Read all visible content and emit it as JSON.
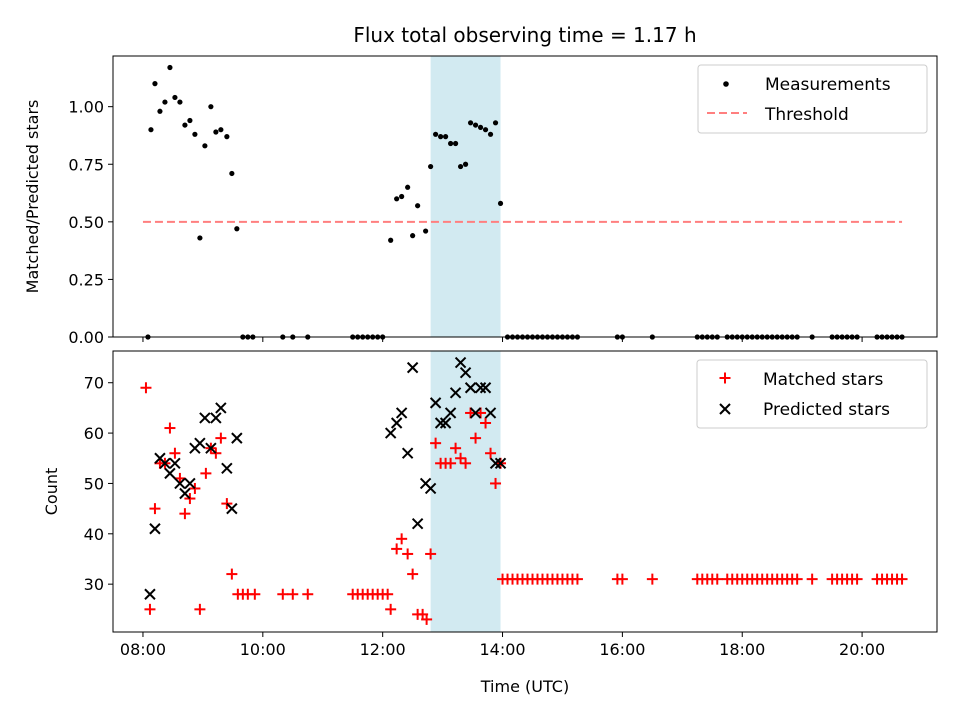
{
  "colors": {
    "measurement": "#000000",
    "threshold": "#ff7f7f",
    "matched": "#ff0000",
    "predicted": "#000000",
    "highlight": "#add8e6"
  },
  "chart_data": [
    {
      "type": "scatter",
      "title": "Flux total observing time = 1.17 h",
      "xlabel": "",
      "ylabel": "Matched/Predicted stars",
      "xlim": [
        "07:30",
        "21:15"
      ],
      "ylim": [
        0,
        1.22
      ],
      "yticks": [
        "0.00",
        "0.25",
        "0.50",
        "0.75",
        "1.00"
      ],
      "xticks": [
        "08:00",
        "10:00",
        "12:00",
        "14:00",
        "16:00",
        "18:00",
        "20:00"
      ],
      "highlight_span": [
        "12:48",
        "13:58"
      ],
      "legend": {
        "position": "top-right",
        "entries": [
          "Measurements",
          "Threshold"
        ]
      },
      "threshold": {
        "value": 0.5,
        "x": [
          "08:00",
          "20:40"
        ]
      },
      "series": [
        {
          "name": "Measurements",
          "points": [
            [
              "08:05",
              0
            ],
            [
              "08:08",
              0.9
            ],
            [
              "08:12",
              1.1
            ],
            [
              "08:17",
              0.98
            ],
            [
              "08:22",
              1.02
            ],
            [
              "08:27",
              1.17
            ],
            [
              "08:32",
              1.04
            ],
            [
              "08:37",
              1.02
            ],
            [
              "08:42",
              0.92
            ],
            [
              "08:47",
              0.94
            ],
            [
              "08:52",
              0.88
            ],
            [
              "08:57",
              0.43
            ],
            [
              "09:02",
              0.83
            ],
            [
              "09:08",
              1.0
            ],
            [
              "09:13",
              0.89
            ],
            [
              "09:18",
              0.9
            ],
            [
              "09:24",
              0.87
            ],
            [
              "09:29",
              0.71
            ],
            [
              "09:34",
              0.47
            ],
            [
              "09:40",
              0
            ],
            [
              "09:45",
              0
            ],
            [
              "09:50",
              0
            ],
            [
              "10:20",
              0
            ],
            [
              "10:30",
              0
            ],
            [
              "10:45",
              0
            ],
            [
              "11:30",
              0
            ],
            [
              "11:35",
              0
            ],
            [
              "11:40",
              0
            ],
            [
              "11:45",
              0
            ],
            [
              "11:50",
              0
            ],
            [
              "11:55",
              0
            ],
            [
              "12:00",
              0
            ],
            [
              "12:08",
              0.42
            ],
            [
              "12:14",
              0.6
            ],
            [
              "12:19",
              0.61
            ],
            [
              "12:25",
              0.65
            ],
            [
              "12:30",
              0.44
            ],
            [
              "12:35",
              0.57
            ],
            [
              "12:43",
              0.46
            ],
            [
              "12:48",
              0.74
            ],
            [
              "12:53",
              0.88
            ],
            [
              "12:58",
              0.87
            ],
            [
              "13:03",
              0.87
            ],
            [
              "13:08",
              0.84
            ],
            [
              "13:13",
              0.84
            ],
            [
              "13:18",
              0.74
            ],
            [
              "13:23",
              0.75
            ],
            [
              "13:28",
              0.93
            ],
            [
              "13:33",
              0.92
            ],
            [
              "13:38",
              0.91
            ],
            [
              "13:43",
              0.9
            ],
            [
              "13:48",
              0.88
            ],
            [
              "13:53",
              0.93
            ],
            [
              "13:58",
              0.58
            ],
            [
              "14:05",
              0
            ],
            [
              "14:10",
              0
            ],
            [
              "14:15",
              0
            ],
            [
              "14:20",
              0
            ],
            [
              "14:25",
              0
            ],
            [
              "14:30",
              0
            ],
            [
              "14:35",
              0
            ],
            [
              "14:40",
              0
            ],
            [
              "14:45",
              0
            ],
            [
              "14:50",
              0
            ],
            [
              "14:55",
              0
            ],
            [
              "15:00",
              0
            ],
            [
              "15:05",
              0
            ],
            [
              "15:10",
              0
            ],
            [
              "15:15",
              0
            ],
            [
              "15:55",
              0
            ],
            [
              "16:00",
              0
            ],
            [
              "16:30",
              0
            ],
            [
              "17:15",
              0
            ],
            [
              "17:20",
              0
            ],
            [
              "17:25",
              0
            ],
            [
              "17:30",
              0
            ],
            [
              "17:35",
              0
            ],
            [
              "17:45",
              0
            ],
            [
              "17:50",
              0
            ],
            [
              "17:55",
              0
            ],
            [
              "18:00",
              0
            ],
            [
              "18:05",
              0
            ],
            [
              "18:10",
              0
            ],
            [
              "18:15",
              0
            ],
            [
              "18:20",
              0
            ],
            [
              "18:25",
              0
            ],
            [
              "18:30",
              0
            ],
            [
              "18:35",
              0
            ],
            [
              "18:40",
              0
            ],
            [
              "18:45",
              0
            ],
            [
              "18:50",
              0
            ],
            [
              "18:55",
              0
            ],
            [
              "19:10",
              0
            ],
            [
              "19:30",
              0
            ],
            [
              "19:35",
              0
            ],
            [
              "19:40",
              0
            ],
            [
              "19:45",
              0
            ],
            [
              "19:50",
              0
            ],
            [
              "19:55",
              0
            ],
            [
              "20:15",
              0
            ],
            [
              "20:20",
              0
            ],
            [
              "20:25",
              0
            ],
            [
              "20:30",
              0
            ],
            [
              "20:35",
              0
            ],
            [
              "20:40",
              0
            ]
          ]
        }
      ]
    },
    {
      "type": "scatter",
      "title": "",
      "xlabel": "Time (UTC)",
      "ylabel": "Count",
      "xlim": [
        "07:30",
        "21:15"
      ],
      "ylim": [
        20.5,
        76.3
      ],
      "yticks": [
        "30",
        "40",
        "50",
        "60",
        "70"
      ],
      "xticks": [
        "08:00",
        "10:00",
        "12:00",
        "14:00",
        "16:00",
        "18:00",
        "20:00"
      ],
      "highlight_span": [
        "12:48",
        "13:58"
      ],
      "legend": {
        "position": "top-right",
        "entries": [
          "Matched stars",
          "Predicted stars"
        ]
      },
      "series": [
        {
          "name": "Matched stars",
          "points": [
            [
              "08:03",
              69
            ],
            [
              "08:07",
              25
            ],
            [
              "08:12",
              45
            ],
            [
              "08:17",
              54
            ],
            [
              "08:22",
              54
            ],
            [
              "08:27",
              61
            ],
            [
              "08:32",
              56
            ],
            [
              "08:37",
              51
            ],
            [
              "08:42",
              44
            ],
            [
              "08:47",
              47
            ],
            [
              "08:52",
              49
            ],
            [
              "08:57",
              25
            ],
            [
              "09:03",
              52
            ],
            [
              "09:08",
              57
            ],
            [
              "09:13",
              56
            ],
            [
              "09:18",
              59
            ],
            [
              "09:24",
              46
            ],
            [
              "09:29",
              32
            ],
            [
              "09:35",
              28
            ],
            [
              "09:40",
              28
            ],
            [
              "09:45",
              28
            ],
            [
              "09:52",
              28
            ],
            [
              "10:20",
              28
            ],
            [
              "10:30",
              28
            ],
            [
              "10:45",
              28
            ],
            [
              "11:30",
              28
            ],
            [
              "11:35",
              28
            ],
            [
              "11:40",
              28
            ],
            [
              "11:45",
              28
            ],
            [
              "11:50",
              28
            ],
            [
              "11:55",
              28
            ],
            [
              "12:00",
              28
            ],
            [
              "12:05",
              28
            ],
            [
              "12:08",
              25
            ],
            [
              "12:14",
              37
            ],
            [
              "12:19",
              39
            ],
            [
              "12:25",
              36
            ],
            [
              "12:30",
              32
            ],
            [
              "12:35",
              24
            ],
            [
              "12:40",
              24
            ],
            [
              "12:44",
              23
            ],
            [
              "12:48",
              36
            ],
            [
              "12:53",
              58
            ],
            [
              "12:58",
              54
            ],
            [
              "13:03",
              54
            ],
            [
              "13:08",
              54
            ],
            [
              "13:13",
              57
            ],
            [
              "13:18",
              55
            ],
            [
              "13:23",
              54
            ],
            [
              "13:28",
              64
            ],
            [
              "13:33",
              59
            ],
            [
              "13:38",
              64
            ],
            [
              "13:43",
              62
            ],
            [
              "13:48",
              56
            ],
            [
              "13:53",
              50
            ],
            [
              "13:58",
              54
            ],
            [
              "14:00",
              31
            ],
            [
              "14:05",
              31
            ],
            [
              "14:10",
              31
            ],
            [
              "14:15",
              31
            ],
            [
              "14:20",
              31
            ],
            [
              "14:25",
              31
            ],
            [
              "14:30",
              31
            ],
            [
              "14:35",
              31
            ],
            [
              "14:40",
              31
            ],
            [
              "14:45",
              31
            ],
            [
              "14:50",
              31
            ],
            [
              "14:55",
              31
            ],
            [
              "15:00",
              31
            ],
            [
              "15:05",
              31
            ],
            [
              "15:10",
              31
            ],
            [
              "15:15",
              31
            ],
            [
              "15:55",
              31
            ],
            [
              "16:00",
              31
            ],
            [
              "16:30",
              31
            ],
            [
              "17:15",
              31
            ],
            [
              "17:20",
              31
            ],
            [
              "17:25",
              31
            ],
            [
              "17:30",
              31
            ],
            [
              "17:35",
              31
            ],
            [
              "17:45",
              31
            ],
            [
              "17:50",
              31
            ],
            [
              "17:55",
              31
            ],
            [
              "18:00",
              31
            ],
            [
              "18:05",
              31
            ],
            [
              "18:10",
              31
            ],
            [
              "18:15",
              31
            ],
            [
              "18:20",
              31
            ],
            [
              "18:25",
              31
            ],
            [
              "18:30",
              31
            ],
            [
              "18:35",
              31
            ],
            [
              "18:40",
              31
            ],
            [
              "18:45",
              31
            ],
            [
              "18:50",
              31
            ],
            [
              "18:55",
              31
            ],
            [
              "19:10",
              31
            ],
            [
              "19:30",
              31
            ],
            [
              "19:35",
              31
            ],
            [
              "19:40",
              31
            ],
            [
              "19:45",
              31
            ],
            [
              "19:50",
              31
            ],
            [
              "19:55",
              31
            ],
            [
              "20:15",
              31
            ],
            [
              "20:20",
              31
            ],
            [
              "20:25",
              31
            ],
            [
              "20:30",
              31
            ],
            [
              "20:35",
              31
            ],
            [
              "20:40",
              31
            ]
          ]
        },
        {
          "name": "Predicted stars",
          "points": [
            [
              "08:07",
              28
            ],
            [
              "08:12",
              41
            ],
            [
              "08:17",
              55
            ],
            [
              "08:22",
              54
            ],
            [
              "08:27",
              52
            ],
            [
              "08:32",
              54
            ],
            [
              "08:37",
              50
            ],
            [
              "08:42",
              48
            ],
            [
              "08:47",
              50
            ],
            [
              "08:52",
              57
            ],
            [
              "08:57",
              58
            ],
            [
              "09:02",
              63
            ],
            [
              "09:08",
              57
            ],
            [
              "09:13",
              63
            ],
            [
              "09:18",
              65
            ],
            [
              "09:24",
              53
            ],
            [
              "09:29",
              45
            ],
            [
              "09:34",
              59
            ],
            [
              "12:08",
              60
            ],
            [
              "12:14",
              62
            ],
            [
              "12:19",
              64
            ],
            [
              "12:25",
              56
            ],
            [
              "12:30",
              73
            ],
            [
              "12:35",
              42
            ],
            [
              "12:43",
              50
            ],
            [
              "12:48",
              49
            ],
            [
              "12:53",
              66
            ],
            [
              "12:58",
              62
            ],
            [
              "13:03",
              62
            ],
            [
              "13:08",
              64
            ],
            [
              "13:13",
              68
            ],
            [
              "13:18",
              74
            ],
            [
              "13:23",
              72
            ],
            [
              "13:28",
              69
            ],
            [
              "13:33",
              64
            ],
            [
              "13:38",
              69
            ],
            [
              "13:43",
              69
            ],
            [
              "13:48",
              64
            ],
            [
              "13:53",
              54
            ],
            [
              "13:58",
              54
            ]
          ]
        }
      ]
    }
  ]
}
